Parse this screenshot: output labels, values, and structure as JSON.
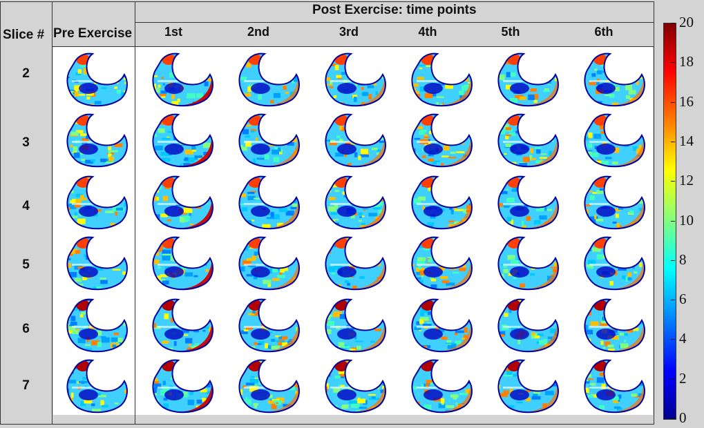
{
  "header": {
    "slice_label": "Slice #",
    "pre_label": "Pre Exercise",
    "post_label": "Post Exercise: time points",
    "time_points": [
      "1st",
      "2nd",
      "3rd",
      "4th",
      "5th",
      "6th"
    ]
  },
  "slices": [
    "2",
    "3",
    "4",
    "5",
    "6",
    "7"
  ],
  "colorbar": {
    "ticks": [
      "20",
      "18",
      "16",
      "14",
      "12",
      "10",
      "8",
      "6",
      "4",
      "2",
      "0"
    ],
    "min": 0,
    "max": 20,
    "colormap": "jet"
  }
}
